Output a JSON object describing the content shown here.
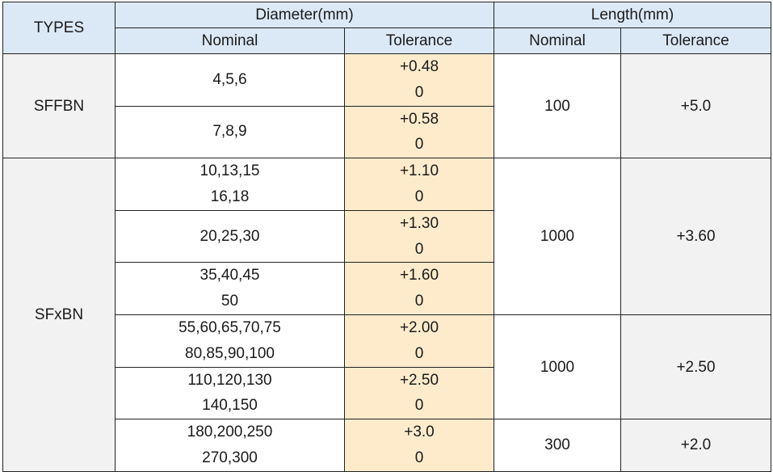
{
  "header": {
    "types": "TYPES",
    "diameter": "Diameter(mm)",
    "length": "Length(mm)",
    "diameter_nominal": "Nominal",
    "diameter_tolerance": "Tolerance",
    "length_nominal": "Nominal",
    "length_tolerance": "Tolerance"
  },
  "types": [
    "SFFBN",
    "SFxBN"
  ],
  "rows": [
    {
      "nominal": [
        "4,5,6"
      ],
      "tolerance": [
        "+0.48",
        "0"
      ]
    },
    {
      "nominal": [
        "7,8,9"
      ],
      "tolerance": [
        "+0.58",
        "0"
      ]
    },
    {
      "nominal": [
        "10,13,15",
        "16,18"
      ],
      "tolerance": [
        "+1.10",
        "0"
      ]
    },
    {
      "nominal": [
        "20,25,30"
      ],
      "tolerance": [
        "+1.30",
        "0"
      ]
    },
    {
      "nominal": [
        "35,40,45",
        "50"
      ],
      "tolerance": [
        "+1.60",
        "0"
      ]
    },
    {
      "nominal": [
        "55,60,65,70,75",
        "80,85,90,100"
      ],
      "tolerance": [
        "+2.00",
        "0"
      ]
    },
    {
      "nominal": [
        "110,120,130",
        "140,150"
      ],
      "tolerance": [
        "+2.50",
        "0"
      ]
    },
    {
      "nominal": [
        "180,200,250",
        "270,300"
      ],
      "tolerance": [
        "+3.0",
        "0"
      ]
    }
  ],
  "length_groups": [
    {
      "nominal": "100",
      "tolerance": "+5.0"
    },
    {
      "nominal": "1000",
      "tolerance": "+3.60"
    },
    {
      "nominal": "1000",
      "tolerance": "+2.50"
    },
    {
      "nominal": "300",
      "tolerance": "+2.0"
    }
  ],
  "colors": {
    "header_bg": "#dbe9f7",
    "type_bg": "#f2f2f2",
    "tolerance_bg": "#fdebcb",
    "length_tolerance_bg": "#f2f2f2",
    "border": "#222222"
  }
}
